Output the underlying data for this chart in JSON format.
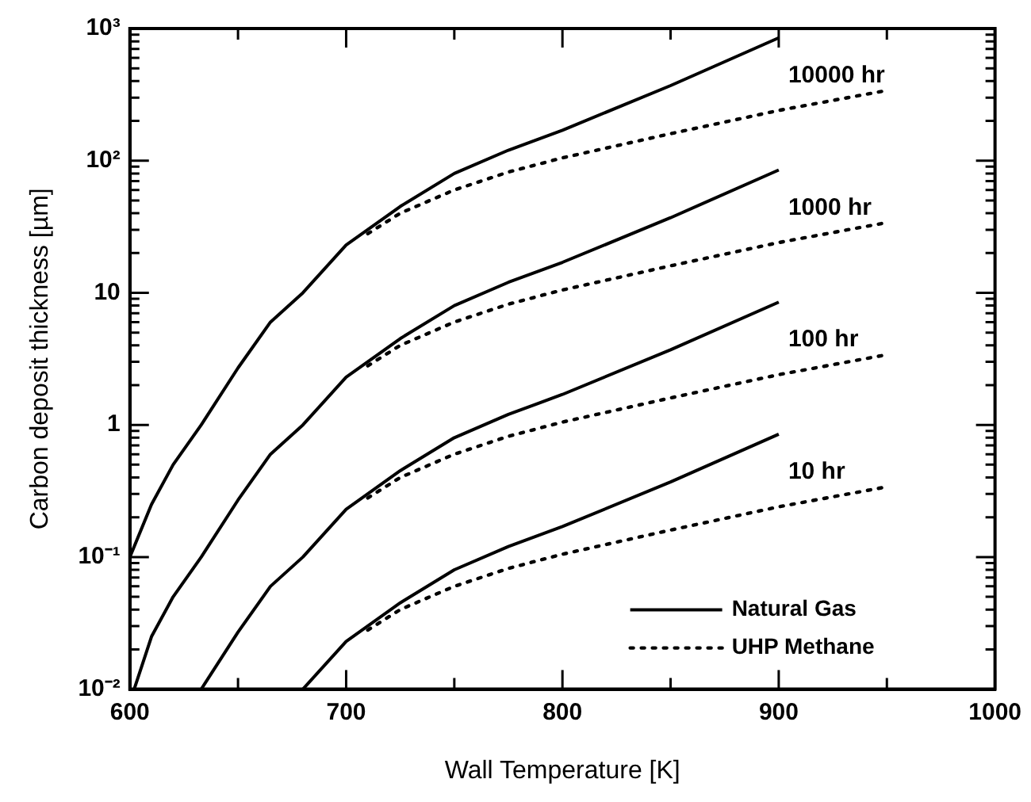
{
  "chart_data": {
    "type": "line",
    "xlabel": "Wall Temperature [K]",
    "ylabel": "Carbon deposit thickness [µm]",
    "log": "y",
    "grid": false,
    "legend": "bottom right",
    "marker": "none",
    "xlim": [
      600,
      1000
    ],
    "xticks": [
      600,
      {
        "value": 650,
        "label": null
      },
      700,
      {
        "value": 750,
        "label": null
      },
      800,
      {
        "value": 850,
        "label": null
      },
      900,
      {
        "value": 950,
        "label": null
      },
      1000
    ],
    "ylim": [
      0.01,
      1000
    ],
    "yticks": [
      {
        "value": 0.01,
        "label": "10⁻²"
      },
      {
        "value": 0.02,
        "label": null
      },
      {
        "value": 0.03,
        "label": null
      },
      {
        "value": 0.04,
        "label": null
      },
      {
        "value": 0.05,
        "label": null
      },
      {
        "value": 0.06,
        "label": null
      },
      {
        "value": 0.07,
        "label": null
      },
      {
        "value": 0.08,
        "label": null
      },
      {
        "value": 0.09,
        "label": null
      },
      {
        "value": 0.1,
        "label": "10⁻¹"
      },
      {
        "value": 0.2,
        "label": null
      },
      {
        "value": 0.3,
        "label": null
      },
      {
        "value": 0.4,
        "label": null
      },
      {
        "value": 0.5,
        "label": null
      },
      {
        "value": 0.6,
        "label": null
      },
      {
        "value": 0.7,
        "label": null
      },
      {
        "value": 0.8,
        "label": null
      },
      {
        "value": 0.9,
        "label": null
      },
      1,
      {
        "value": 2,
        "label": null
      },
      {
        "value": 3,
        "label": null
      },
      {
        "value": 4,
        "label": null
      },
      {
        "value": 5,
        "label": null
      },
      {
        "value": 6,
        "label": null
      },
      {
        "value": 7,
        "label": null
      },
      {
        "value": 8,
        "label": null
      },
      {
        "value": 9,
        "label": null
      },
      10,
      {
        "value": 20,
        "label": null
      },
      {
        "value": 30,
        "label": null
      },
      {
        "value": 40,
        "label": null
      },
      {
        "value": 50,
        "label": null
      },
      {
        "value": 60,
        "label": null
      },
      {
        "value": 70,
        "label": null
      },
      {
        "value": 80,
        "label": null
      },
      {
        "value": 90,
        "label": null
      },
      {
        "value": 100,
        "label": "10²"
      },
      {
        "value": 200,
        "label": null
      },
      {
        "value": 300,
        "label": null
      },
      {
        "value": 400,
        "label": null
      },
      {
        "value": 500,
        "label": null
      },
      {
        "value": 600,
        "label": null
      },
      {
        "value": 700,
        "label": null
      },
      {
        "value": 800,
        "label": null
      },
      {
        "value": 900,
        "label": null
      },
      {
        "value": 1000,
        "label": "10³"
      }
    ],
    "series": [
      {
        "name": "Natural Gas",
        "color": "#000000",
        "line_style": "solid",
        "x": [
          600,
          610,
          620,
          633,
          650,
          665,
          680,
          700,
          725,
          750,
          775,
          800,
          850,
          900
        ],
        "values": [
          0.1,
          0.25,
          0.5,
          1,
          2.7,
          6,
          10,
          23,
          45,
          80,
          120,
          170,
          370,
          850
        ]
      },
      {
        "color": "#000000",
        "line_style": "solid",
        "x": [
          602,
          610,
          620,
          633,
          650,
          665,
          680,
          700,
          725,
          750,
          775,
          800,
          850,
          900
        ],
        "values": [
          0.01,
          0.025,
          0.05,
          0.1,
          0.27,
          0.6,
          1,
          2.3,
          4.5,
          8,
          12,
          17,
          37,
          85
        ]
      },
      {
        "color": "#000000",
        "line_style": "solid",
        "x": [
          633,
          650,
          665,
          680,
          700,
          725,
          750,
          775,
          800,
          850,
          900
        ],
        "values": [
          0.01,
          0.027,
          0.06,
          0.1,
          0.23,
          0.45,
          0.8,
          1.2,
          1.7,
          3.7,
          8.5
        ]
      },
      {
        "color": "#000000",
        "line_style": "solid",
        "x": [
          680,
          700,
          725,
          750,
          775,
          800,
          850,
          900
        ],
        "values": [
          0.01,
          0.023,
          0.045,
          0.08,
          0.12,
          0.17,
          0.37,
          0.85
        ]
      },
      {
        "name": "UHP Methane",
        "color": "#000000",
        "line_style": "dotted",
        "x": [
          710,
          725,
          750,
          775,
          800,
          850,
          900,
          950
        ],
        "values": [
          28,
          40,
          60,
          82,
          105,
          160,
          240,
          340
        ]
      },
      {
        "color": "#000000",
        "line_style": "dotted",
        "x": [
          710,
          725,
          750,
          775,
          800,
          850,
          900,
          950
        ],
        "values": [
          2.8,
          4,
          6,
          8.2,
          10.5,
          16,
          24,
          34
        ]
      },
      {
        "color": "#000000",
        "line_style": "dotted",
        "x": [
          710,
          725,
          750,
          775,
          800,
          850,
          900,
          950
        ],
        "values": [
          0.28,
          0.4,
          0.6,
          0.82,
          1.05,
          1.6,
          2.4,
          3.4
        ]
      },
      {
        "color": "#000000",
        "line_style": "dotted",
        "x": [
          710,
          725,
          750,
          775,
          800,
          850,
          900,
          950
        ],
        "values": [
          0.028,
          0.04,
          0.06,
          0.082,
          0.105,
          0.16,
          0.24,
          0.34
        ]
      }
    ],
    "annotations": [
      "10000 hr",
      "1000 hr",
      "100 hr",
      "10 hr"
    ]
  }
}
